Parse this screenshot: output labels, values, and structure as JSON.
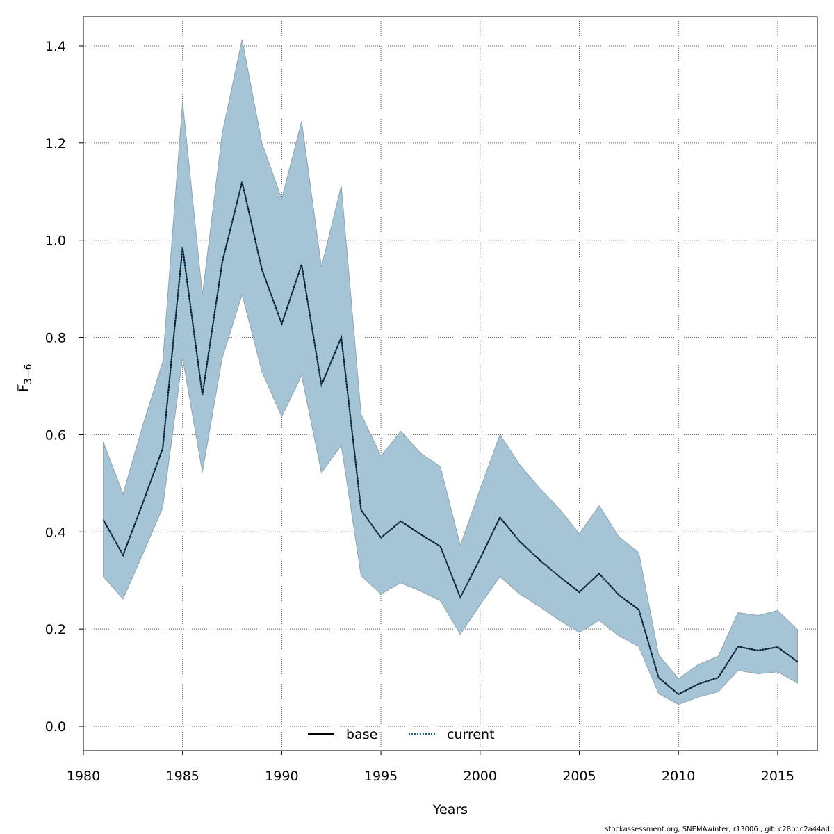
{
  "chart_data": {
    "type": "line",
    "xlabel": "Years",
    "ylabel": "F",
    "ylabel_subscript": "3−6",
    "xlim": [
      1980,
      2017
    ],
    "ylim": [
      -0.05,
      1.46
    ],
    "x_ticks": [
      1980,
      1985,
      1990,
      1995,
      2000,
      2005,
      2010,
      2015
    ],
    "y_ticks": [
      0.0,
      0.2,
      0.4,
      0.6,
      0.8,
      1.0,
      1.2,
      1.4
    ],
    "y_tick_labels": [
      "0.0",
      "0.2",
      "0.4",
      "0.6",
      "0.8",
      "1.0",
      "1.2",
      "1.4"
    ],
    "grid": true,
    "legend_position": "bottom-center",
    "x": [
      1981,
      1982,
      1983,
      1984,
      1985,
      1986,
      1987,
      1988,
      1989,
      1990,
      1991,
      1992,
      1993,
      1994,
      1995,
      1996,
      1997,
      1998,
      1999,
      2000,
      2001,
      2002,
      2003,
      2004,
      2005,
      2006,
      2007,
      2008,
      2009,
      2010,
      2011,
      2012,
      2013,
      2014,
      2015,
      2016
    ],
    "series": [
      {
        "name": "base",
        "line_style": "solid",
        "color": "#000000",
        "values": [
          0.425,
          0.352,
          0.46,
          0.572,
          0.985,
          0.682,
          0.955,
          1.12,
          0.94,
          0.828,
          0.95,
          0.702,
          0.8,
          0.445,
          0.388,
          0.422,
          0.395,
          0.37,
          0.265,
          0.345,
          0.43,
          0.38,
          0.342,
          0.308,
          0.276,
          0.314,
          0.27,
          0.24,
          0.1,
          0.066,
          0.087,
          0.1,
          0.164,
          0.156,
          0.163,
          0.133
        ]
      },
      {
        "name": "current",
        "line_style": "dotted",
        "color": "#1f5f8b",
        "values": [
          0.425,
          0.352,
          0.46,
          0.572,
          0.985,
          0.682,
          0.955,
          1.12,
          0.94,
          0.828,
          0.95,
          0.702,
          0.8,
          0.445,
          0.388,
          0.422,
          0.395,
          0.37,
          0.265,
          0.345,
          0.43,
          0.38,
          0.342,
          0.308,
          0.276,
          0.314,
          0.27,
          0.24,
          0.1,
          0.066,
          0.087,
          0.1,
          0.164,
          0.156,
          0.163,
          0.133
        ]
      }
    ],
    "confidence_band": {
      "upper": [
        0.585,
        0.478,
        0.62,
        0.75,
        1.285,
        0.888,
        1.22,
        1.413,
        1.2,
        1.085,
        1.245,
        0.945,
        1.112,
        0.642,
        0.556,
        0.607,
        0.562,
        0.534,
        0.372,
        0.488,
        0.6,
        0.538,
        0.49,
        0.447,
        0.396,
        0.454,
        0.39,
        0.357,
        0.147,
        0.098,
        0.127,
        0.144,
        0.234,
        0.228,
        0.238,
        0.199
      ],
      "lower": [
        0.308,
        0.262,
        0.355,
        0.45,
        0.758,
        0.523,
        0.758,
        0.888,
        0.73,
        0.637,
        0.722,
        0.522,
        0.578,
        0.31,
        0.272,
        0.295,
        0.278,
        0.258,
        0.189,
        0.25,
        0.308,
        0.272,
        0.246,
        0.218,
        0.193,
        0.218,
        0.186,
        0.164,
        0.067,
        0.045,
        0.06,
        0.071,
        0.115,
        0.108,
        0.112,
        0.089
      ],
      "color": "#a5c5d6",
      "edge_color": "#8ea2ae"
    }
  },
  "footnote": "stockassessment.org, SNEMAwinter, r13006 , git: c28bdc2a44ad"
}
